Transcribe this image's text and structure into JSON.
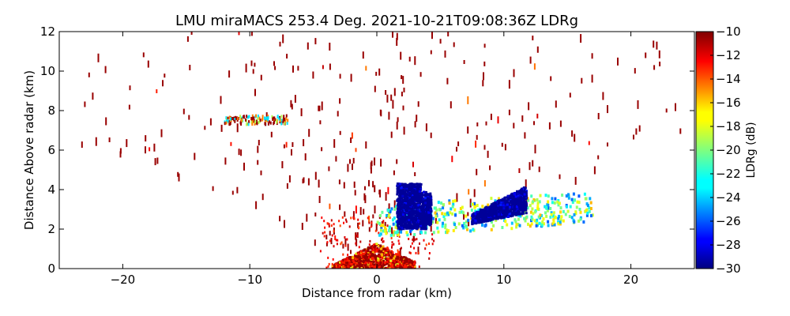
{
  "chart_data": {
    "type": "scatter",
    "title": "LMU miraMACS 253.4 Deg. 2021-10-21T09:08:36Z  LDRg",
    "xlabel": "Distance from radar (km)",
    "ylabel": "Distance Above radar  (km)",
    "xlim": [
      -25,
      25
    ],
    "ylim": [
      0,
      12
    ],
    "xticks": [
      -20,
      -10,
      0,
      10,
      20
    ],
    "yticks": [
      0,
      2,
      4,
      6,
      8,
      10,
      12
    ],
    "xtick_labels": [
      "−20",
      "−10",
      "0",
      "10",
      "20"
    ],
    "ytick_labels": [
      "0",
      "2",
      "4",
      "6",
      "8",
      "10",
      "12"
    ],
    "colorbar": {
      "label": "LDRg (dB)",
      "range": [
        -30,
        -10
      ],
      "ticks": [
        -10,
        -12,
        -14,
        -16,
        -18,
        -20,
        -22,
        -24,
        -26,
        -28,
        -30
      ],
      "tick_labels": [
        "−10",
        "−12",
        "−14",
        "−16",
        "−18",
        "−20",
        "−22",
        "−24",
        "−26",
        "−28",
        "−30"
      ],
      "colormap": "jet"
    },
    "regions": [
      {
        "name": "near-radar clutter",
        "x": [
          -3.5,
          3.0
        ],
        "y": [
          0.0,
          1.3
        ],
        "ldr": -11
      },
      {
        "name": "blue echo A",
        "x": [
          1.5,
          4.3
        ],
        "y": [
          1.9,
          4.3
        ],
        "ldr": -29
      },
      {
        "name": "blue echo B",
        "x": [
          7.5,
          11.8
        ],
        "y": [
          2.0,
          3.8
        ],
        "ldr": -29
      },
      {
        "name": "mixed band",
        "x": [
          0.0,
          17.0
        ],
        "y": [
          1.8,
          4.5
        ],
        "ldr": -22
      },
      {
        "name": "speckle band 7.5 km",
        "x": [
          -12.0,
          -7.0
        ],
        "y": [
          7.2,
          7.8
        ],
        "ldr": -16
      }
    ],
    "grid": false,
    "legend": "none"
  }
}
